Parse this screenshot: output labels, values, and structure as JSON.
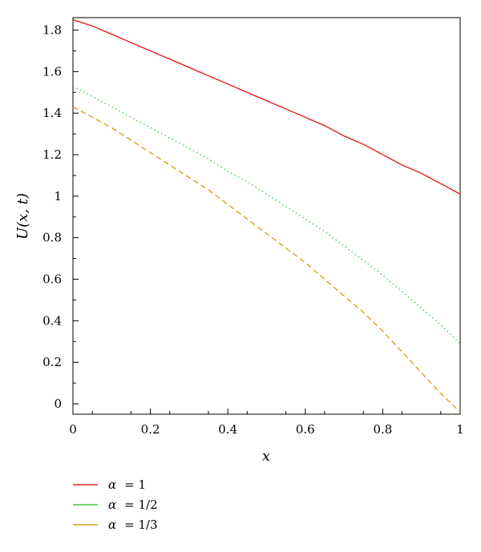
{
  "chart_data": {
    "type": "line",
    "xlabel": "x",
    "ylabel": "U(x, t)",
    "xlim": [
      0,
      1
    ],
    "ylim": [
      -0.05,
      1.86
    ],
    "xticks": [
      {
        "value": 0,
        "label": "0"
      },
      {
        "value": 0.2,
        "label": "0.2"
      },
      {
        "value": 0.4,
        "label": "0.4"
      },
      {
        "value": 0.6,
        "label": "0.6"
      },
      {
        "value": 0.8,
        "label": "0.8"
      },
      {
        "value": 1,
        "label": "1"
      }
    ],
    "yticks": [
      {
        "value": 0,
        "label": "0"
      },
      {
        "value": 0.2,
        "label": "0.2"
      },
      {
        "value": 0.4,
        "label": "0.4"
      },
      {
        "value": 0.6,
        "label": "0.6"
      },
      {
        "value": 0.8,
        "label": "0.8"
      },
      {
        "value": 1,
        "label": "1"
      },
      {
        "value": 1.2,
        "label": "1.2"
      },
      {
        "value": 1.4,
        "label": "1.4"
      },
      {
        "value": 1.6,
        "label": "1.6"
      },
      {
        "value": 1.8,
        "label": "1.8"
      }
    ],
    "grid": false,
    "legend_position": "bottom-left, below plot",
    "x": [
      0,
      0.05,
      0.1,
      0.15,
      0.2,
      0.25,
      0.3,
      0.35,
      0.4,
      0.45,
      0.5,
      0.55,
      0.6,
      0.65,
      0.7,
      0.75,
      0.8,
      0.85,
      0.9,
      0.95,
      1.0
    ],
    "series": [
      {
        "name": "α = 1",
        "legend_symbol": "α",
        "legend_value": "= 1",
        "color": "#e32222",
        "dash": "solid",
        "values": [
          1.85,
          1.82,
          1.78,
          1.74,
          1.7,
          1.66,
          1.62,
          1.58,
          1.54,
          1.5,
          1.46,
          1.42,
          1.38,
          1.34,
          1.29,
          1.25,
          1.2,
          1.15,
          1.11,
          1.06,
          1.01
        ]
      },
      {
        "name": "α = 1/2",
        "legend_symbol": "α",
        "legend_value": "= 1/2",
        "color": "#44cc44",
        "dash": "dotted",
        "values": [
          1.53,
          1.48,
          1.43,
          1.38,
          1.33,
          1.28,
          1.23,
          1.18,
          1.12,
          1.07,
          1.01,
          0.95,
          0.89,
          0.83,
          0.76,
          0.69,
          0.62,
          0.54,
          0.46,
          0.38,
          0.29
        ]
      },
      {
        "name": "α = 1/3",
        "legend_symbol": "α",
        "legend_value": "= 1/3",
        "color": "#d9a020",
        "dash": "dashed",
        "values": [
          1.43,
          1.38,
          1.33,
          1.27,
          1.21,
          1.15,
          1.09,
          1.03,
          0.96,
          0.89,
          0.82,
          0.75,
          0.68,
          0.6,
          0.52,
          0.44,
          0.35,
          0.25,
          0.15,
          0.05,
          -0.04
        ]
      }
    ]
  }
}
